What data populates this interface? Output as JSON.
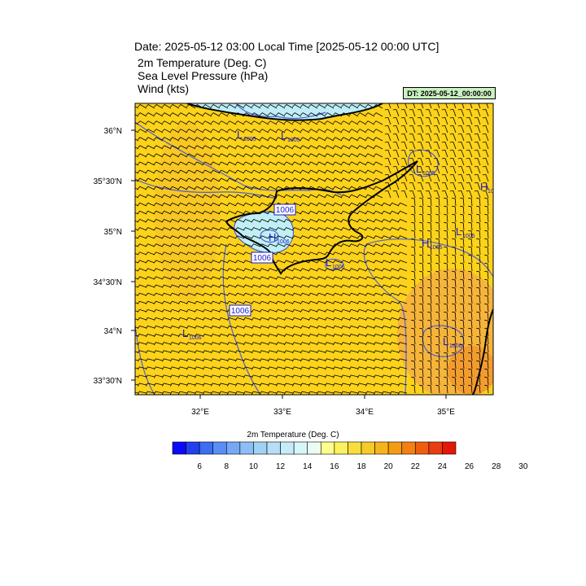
{
  "header": {
    "title": "Date: 2025-05-12  03:00 Local Time [2025-05-12  00:00 UTC]",
    "lines": [
      "2m Temperature (Deg. C)",
      "Sea Level Pressure   (hPa)",
      "Wind   (kts)"
    ],
    "dt_badge": "DT: 2025-05-12_00:00:00"
  },
  "map": {
    "lat_labels": [
      "36°N",
      "35°30'N",
      "35°N",
      "34°30'N",
      "34°N",
      "33°30'N"
    ],
    "lon_labels": [
      "32°E",
      "33°E",
      "34°E",
      "35°E"
    ],
    "pressure_labels": [
      {
        "type": "L",
        "value": "1005"
      },
      {
        "type": "L",
        "value": "1005"
      },
      {
        "type": "L",
        "value": "1005"
      },
      {
        "type": "H",
        "value": "10"
      },
      {
        "type": "L",
        "value": "1005"
      },
      {
        "type": "H",
        "value": "1006"
      },
      {
        "type": "L",
        "value": "1006"
      },
      {
        "type": "H",
        "value": "1006"
      },
      {
        "type": "L",
        "value": "1006"
      },
      {
        "type": "L",
        "value": "1006"
      }
    ],
    "contour_labels": [
      "1006",
      "1006",
      "1006"
    ],
    "colors": {
      "base_fill": "#fcd21a",
      "warm_fill": "#f7b43a",
      "hot_fill": "#f08c2a",
      "cool_fill": "#bff0f5",
      "contour": "#5060d0",
      "coast": "#000000"
    }
  },
  "colorbar": {
    "title": "2m Temperature (Deg. C)",
    "colors": [
      "#0a0af5",
      "#2040f0",
      "#3d6df2",
      "#5a8ef5",
      "#76a8f5",
      "#8fbef5",
      "#a3d0f5",
      "#b6def6",
      "#c6ecf8",
      "#d6f6fa",
      "#eafcf4",
      "#fdfd8c",
      "#fbf060",
      "#f8de3a",
      "#f6ca28",
      "#f6b41c",
      "#f49c14",
      "#f28012",
      "#ee5e10",
      "#ea3c10",
      "#e21808"
    ],
    "tick_labels": [
      "6",
      "8",
      "10",
      "12",
      "14",
      "16",
      "18",
      "20",
      "22",
      "24",
      "26",
      "28",
      "30"
    ]
  }
}
